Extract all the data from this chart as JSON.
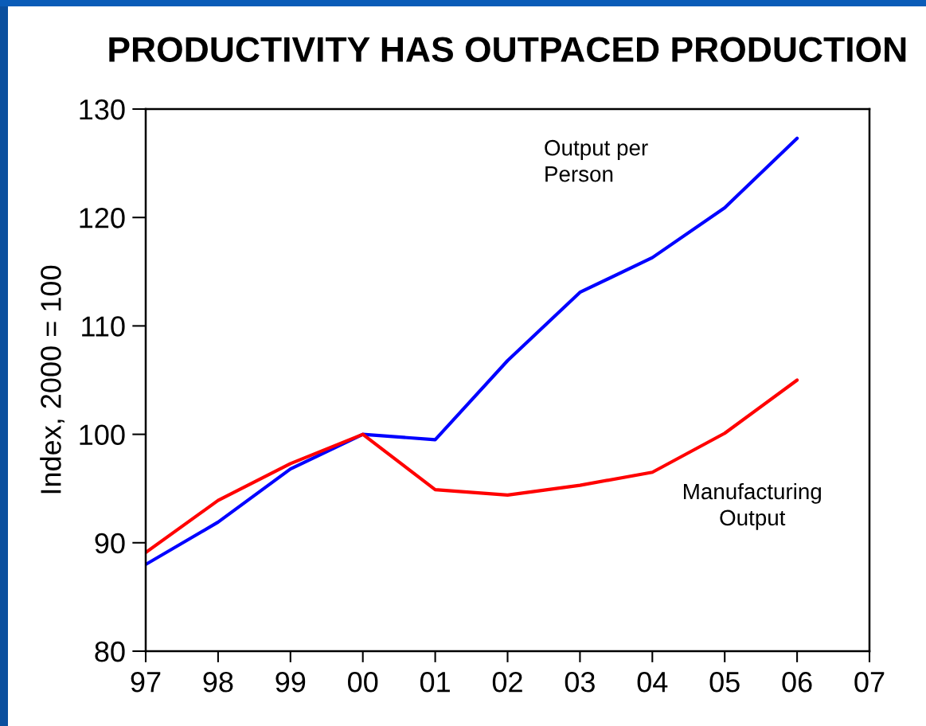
{
  "chart_data": {
    "type": "line",
    "title": "PRODUCTIVITY HAS OUTPACED PRODUCTION",
    "ylabel": "Index, 2000 = 100",
    "series": [
      {
        "name": "Output per\nPerson",
        "color": "#0000ff",
        "x": [
          1997,
          1998,
          1999,
          2000,
          2001,
          2002,
          2003,
          2004,
          2005,
          2006
        ],
        "values": [
          88.0,
          91.9,
          96.8,
          100.0,
          99.5,
          106.8,
          113.1,
          116.3,
          120.9,
          127.3
        ]
      },
      {
        "name": "Manufacturing\nOutput",
        "color": "#ff0000",
        "x": [
          1997,
          1998,
          1999,
          2000,
          2001,
          2002,
          2003,
          2004,
          2005,
          2006
        ],
        "values": [
          89.1,
          93.9,
          97.3,
          100.0,
          94.9,
          94.4,
          95.3,
          96.5,
          100.1,
          105.0
        ]
      }
    ],
    "xlim": [
      1997,
      2007
    ],
    "xticks": [
      {
        "value": 1997,
        "label": "97"
      },
      {
        "value": 1998,
        "label": "98"
      },
      {
        "value": 1999,
        "label": "99"
      },
      {
        "value": 2000,
        "label": "00"
      },
      {
        "value": 2001,
        "label": "01"
      },
      {
        "value": 2002,
        "label": "02"
      },
      {
        "value": 2003,
        "label": "03"
      },
      {
        "value": 2004,
        "label": "04"
      },
      {
        "value": 2005,
        "label": "05"
      },
      {
        "value": 2006,
        "label": "06"
      },
      {
        "value": 2007,
        "label": "07"
      }
    ],
    "ylim": [
      80,
      130
    ],
    "yticks": [
      80,
      90,
      100,
      110,
      120,
      130
    ],
    "line_style": "solid"
  }
}
